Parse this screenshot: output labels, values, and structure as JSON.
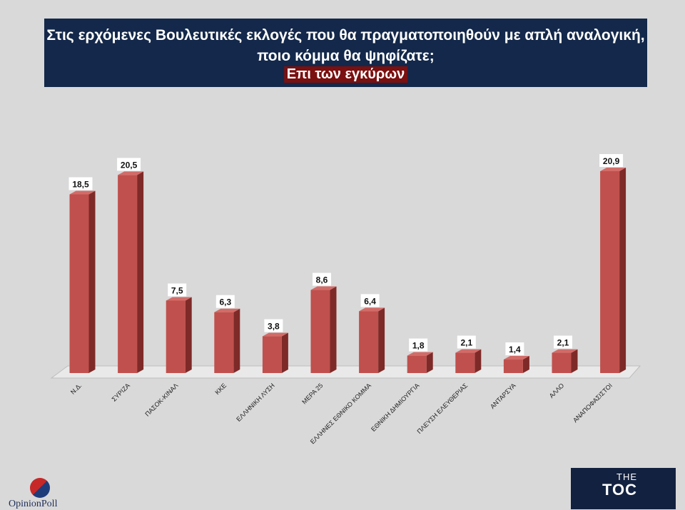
{
  "header": {
    "title_line1": "Στις ερχόμενες Βουλευτικές εκλογές που θα πραγματοποιηθούν με απλή αναλογική,",
    "title_line2": "ποιο κόμμα θα ψηφίζατε;",
    "subtitle": "Επι των εγκύρων"
  },
  "chart_data": {
    "type": "bar",
    "title": "Στις ερχόμενες Βουλευτικές εκλογές που θα πραγματοποιηθούν με απλή αναλογική, ποιο κόμμα θα ψηφίζατε;",
    "subtitle": "Επι των εγκύρων",
    "categories": [
      "Ν.Δ.",
      "ΣΥΡΙΖΑ",
      "ΠΑΣΟΚ-ΚΙΝΑΛ",
      "ΚΚΕ",
      "ΕΛΛΗΝΙΚΗ ΛΥΣΗ",
      "ΜΕΡΑ 25",
      "ΕΛΛΗΝΕΣ ΕΘΝΙΚΟ ΚΟΜΜΑ",
      "ΕΘΝΙΚΗ ΔΗΜΙΟΥΡΓΙΑ",
      "ΠΛΕΥΣΗ ΕΛΕΥΘΕΡΙΑΣ",
      "ΑΝΤΑΡΣΥΑ",
      "ΑΛΛΟ",
      "ΑΝΑΠΟΦΑΣΙΣΤΟΙ"
    ],
    "values": [
      18.5,
      20.5,
      7.5,
      6.3,
      3.8,
      8.6,
      6.4,
      1.8,
      2.1,
      1.4,
      2.1,
      20.9
    ],
    "value_labels": [
      "18,5",
      "20,5",
      "7,5",
      "6,3",
      "3,8",
      "8,6",
      "6,4",
      "1,8",
      "2,1",
      "1,4",
      "2,1",
      "20,9"
    ],
    "xlabel": "",
    "ylabel": "",
    "ylim": [
      0,
      22
    ],
    "grid": false,
    "legend": "none",
    "bar_color": "#c0504d"
  },
  "logos": {
    "opinion_poll": "OpinionPoll",
    "toc_the": "THE",
    "toc_main": "TOC"
  }
}
